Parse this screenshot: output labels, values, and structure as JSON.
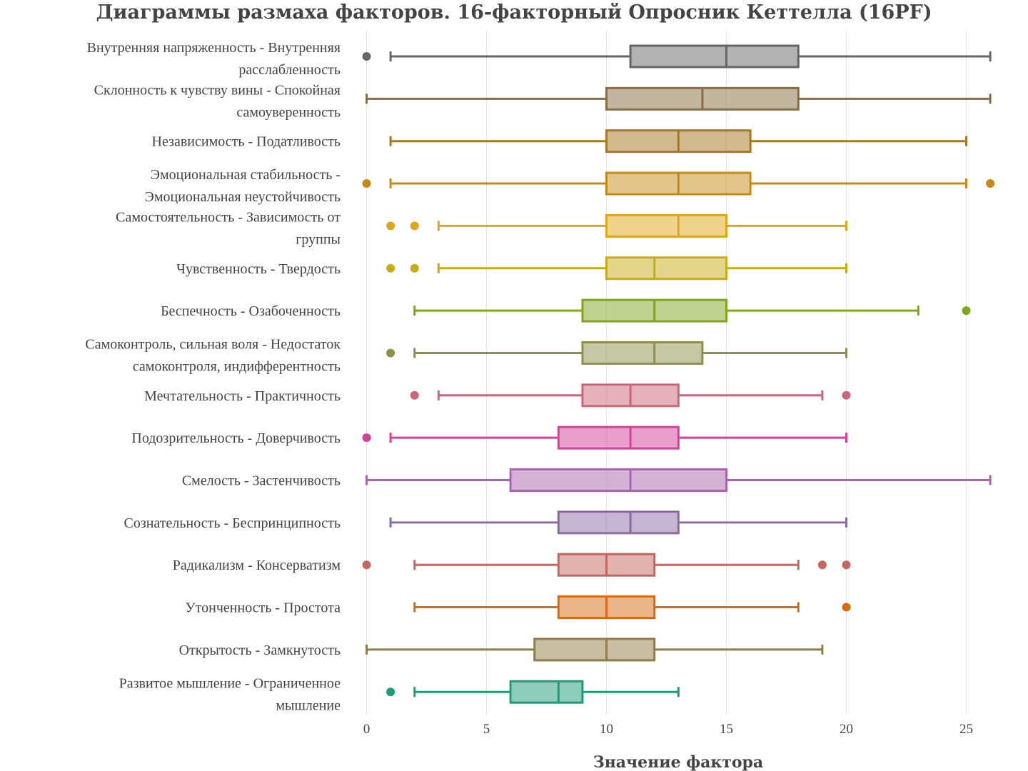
{
  "chart_data": {
    "type": "box",
    "orientation": "horizontal",
    "title": "Диаграммы размаха факторов. 16-факторный Опросник Кеттелла (16PF)",
    "xlabel": "Значение фактора",
    "xlim": [
      0,
      26
    ],
    "xticks": [
      0,
      5,
      10,
      15,
      20,
      25
    ],
    "grid": true,
    "legend": "none",
    "series": [
      {
        "name": "Внутренняя напряженность - Внутренняя расслабленность",
        "label_lines": [
          "Внутренняя напряженность - Внутренняя",
          "расслабленность"
        ],
        "color": "#666666",
        "whisker_low": 1,
        "q1": 11,
        "median": 15,
        "q3": 18,
        "whisker_high": 26,
        "outliers": [
          0
        ]
      },
      {
        "name": "Склонность к чувству вины - Спокойная самоуверенность",
        "label_lines": [
          "Склонность к чувству вины - Спокойная",
          "самоуверенность"
        ],
        "color": "#886d44",
        "whisker_low": 0,
        "q1": 10,
        "median": 14,
        "q3": 18,
        "whisker_high": 26,
        "outliers": []
      },
      {
        "name": "Независимость - Податливость",
        "label_lines": [
          "Независимость - Податливость"
        ],
        "color": "#a67620",
        "whisker_low": 1,
        "q1": 10,
        "median": 13,
        "q3": 16,
        "whisker_high": 25,
        "outliers": []
      },
      {
        "name": "Эмоциональная стабильность - Эмоциональная неустойчивость",
        "label_lines": [
          "Эмоциональная стабильность -",
          "Эмоциональная неустойчивость"
        ],
        "color": "#c58b18",
        "whisker_low": 1,
        "q1": 10,
        "median": 13,
        "q3": 16,
        "whisker_high": 25,
        "outliers": [
          0,
          26
        ]
      },
      {
        "name": "Самостоятельность - Зависимость от группы",
        "label_lines": [
          "Самостоятельность - Зависимость от",
          "группы"
        ],
        "color": "#dda71b",
        "whisker_low": 3,
        "q1": 10,
        "median": 13,
        "q3": 15,
        "whisker_high": 20,
        "outliers": [
          1,
          2
        ]
      },
      {
        "name": "Чувственность - Твердость",
        "label_lines": [
          "Чувственность - Твердость"
        ],
        "color": "#c8ab16",
        "whisker_low": 3,
        "q1": 10,
        "median": 12,
        "q3": 15,
        "whisker_high": 20,
        "outliers": [
          1,
          2
        ]
      },
      {
        "name": "Беспечность - Озабоченность",
        "label_lines": [
          "Беспечность - Озабоченность"
        ],
        "color": "#7fa61f",
        "whisker_low": 2,
        "q1": 9,
        "median": 12,
        "q3": 15,
        "whisker_high": 23,
        "outliers": [
          25
        ]
      },
      {
        "name": "Самоконтроль, сильная воля - Недостаток самоконтроля, индифферентность",
        "label_lines": [
          "Самоконтроль, сильная воля - Недостаток",
          "самоконтроля, индифферентность"
        ],
        "color": "#8e8f4a",
        "whisker_low": 2,
        "q1": 9,
        "median": 12,
        "q3": 14,
        "whisker_high": 20,
        "outliers": [
          1
        ]
      },
      {
        "name": "Мечтательность - Практичность",
        "label_lines": [
          "Мечтательность - Практичность"
        ],
        "color": "#cc6679",
        "whisker_low": 3,
        "q1": 9,
        "median": 11,
        "q3": 13,
        "whisker_high": 19,
        "outliers": [
          2,
          20
        ]
      },
      {
        "name": "Подозрительность - Доверчивость",
        "label_lines": [
          "Подозрительность - Доверчивость"
        ],
        "color": "#d4439a",
        "whisker_low": 1,
        "q1": 8,
        "median": 11,
        "q3": 13,
        "whisker_high": 20,
        "outliers": [
          0
        ]
      },
      {
        "name": "Смелость - Застенчивость",
        "label_lines": [
          "Смелость - Застенчивость"
        ],
        "color": "#a966ae",
        "whisker_low": 0,
        "q1": 6,
        "median": 11,
        "q3": 15,
        "whisker_high": 26,
        "outliers": []
      },
      {
        "name": "Сознательность - Беспринципность",
        "label_lines": [
          "Сознательность - Беспринципность"
        ],
        "color": "#8c6ba3",
        "whisker_low": 1,
        "q1": 8,
        "median": 11,
        "q3": 13,
        "whisker_high": 20,
        "outliers": []
      },
      {
        "name": "Радикализм - Консерватизм",
        "label_lines": [
          "Радикализм - Консерватизм"
        ],
        "color": "#c2685e",
        "whisker_low": 2,
        "q1": 8,
        "median": 10,
        "q3": 12,
        "whisker_high": 18,
        "outliers": [
          0,
          19,
          20
        ]
      },
      {
        "name": "Утонченность - Простота",
        "label_lines": [
          "Утонченность - Простота"
        ],
        "color": "#d66d14",
        "whisker_low": 2,
        "q1": 8,
        "median": 10,
        "q3": 12,
        "whisker_high": 18,
        "outliers": [
          20
        ]
      },
      {
        "name": "Открытость - Замкнутость",
        "label_lines": [
          "Открытость - Замкнутость"
        ],
        "color": "#8f7c47",
        "whisker_low": 0,
        "q1": 7,
        "median": 10,
        "q3": 12,
        "whisker_high": 19,
        "outliers": []
      },
      {
        "name": "Развитое мышление - Ограниченное мышление",
        "label_lines": [
          "Развитое мышление - Ограниченное",
          "мышление"
        ],
        "color": "#1f9b78",
        "whisker_low": 2,
        "q1": 6,
        "median": 8,
        "q3": 9,
        "whisker_high": 13,
        "outliers": [
          1
        ]
      }
    ]
  }
}
